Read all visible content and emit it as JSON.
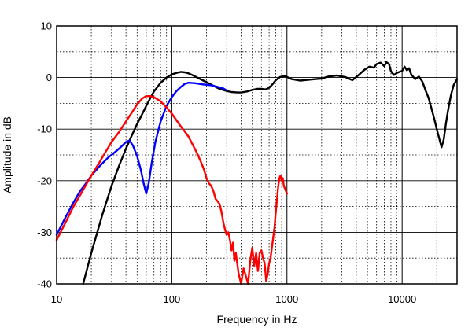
{
  "chart_data": {
    "type": "line",
    "xlabel": "Frequency  in Hz",
    "ylabel": "Amplitude in dB",
    "xscale": "log",
    "xlim": [
      10,
      30000
    ],
    "ylim": [
      -40,
      10
    ],
    "x_ticks": [
      "10",
      "100",
      "1000",
      "10000"
    ],
    "y_ticks": [
      "10",
      "0",
      "-10",
      "-20",
      "-30",
      "-40"
    ],
    "grid": true,
    "series": [
      {
        "color": "#000000",
        "points": [
          [
            17,
            -40
          ],
          [
            20,
            -34
          ],
          [
            25,
            -26.5
          ],
          [
            30,
            -21
          ],
          [
            35,
            -17
          ],
          [
            40,
            -13.8
          ],
          [
            45,
            -11.2
          ],
          [
            50,
            -9
          ],
          [
            55,
            -7.2
          ],
          [
            60,
            -5.5
          ],
          [
            65,
            -4
          ],
          [
            70,
            -2.7
          ],
          [
            80,
            -1
          ],
          [
            90,
            0
          ],
          [
            100,
            0.6
          ],
          [
            110,
            0.9
          ],
          [
            120,
            1.1
          ],
          [
            130,
            1.0
          ],
          [
            140,
            0.8
          ],
          [
            150,
            0.5
          ],
          [
            170,
            -0.1
          ],
          [
            200,
            -0.9
          ],
          [
            230,
            -1.6
          ],
          [
            260,
            -2.2
          ],
          [
            300,
            -2.6
          ],
          [
            330,
            -2.8
          ],
          [
            370,
            -2.9
          ],
          [
            400,
            -2.9
          ],
          [
            450,
            -2.7
          ],
          [
            500,
            -2.4
          ],
          [
            550,
            -2.2
          ],
          [
            600,
            -2.2
          ],
          [
            650,
            -2.3
          ],
          [
            700,
            -2.0
          ],
          [
            750,
            -1.3
          ],
          [
            800,
            -0.5
          ],
          [
            870,
            0.1
          ],
          [
            950,
            0.3
          ],
          [
            1000,
            0.1
          ],
          [
            1100,
            -0.3
          ],
          [
            1300,
            -0.6
          ],
          [
            1600,
            -0.4
          ],
          [
            2000,
            -0.2
          ],
          [
            2300,
            0.2
          ],
          [
            2700,
            0.4
          ],
          [
            3200,
            0.1
          ],
          [
            3700,
            -0.5
          ],
          [
            4200,
            0.5
          ],
          [
            4700,
            1.5
          ],
          [
            5200,
            2.1
          ],
          [
            5700,
            1.9
          ],
          [
            6000,
            2.6
          ],
          [
            6500,
            2.9
          ],
          [
            7000,
            2.2
          ],
          [
            7300,
            3.0
          ],
          [
            7700,
            2.6
          ],
          [
            8000,
            1.2
          ],
          [
            8500,
            0.5
          ],
          [
            9000,
            0.9
          ],
          [
            10000,
            1.3
          ],
          [
            10500,
            2.1
          ],
          [
            11000,
            1.4
          ],
          [
            11500,
            1.8
          ],
          [
            12000,
            0.6
          ],
          [
            13000,
            -0.3
          ],
          [
            14000,
            0.2
          ],
          [
            15000,
            -0.8
          ],
          [
            16000,
            -2.5
          ],
          [
            17000,
            -4.0
          ],
          [
            18000,
            -6.0
          ],
          [
            19000,
            -8.0
          ],
          [
            20000,
            -10.0
          ],
          [
            21000,
            -11.8
          ],
          [
            22000,
            -13.5
          ],
          [
            23000,
            -12.0
          ],
          [
            24000,
            -9.0
          ],
          [
            25000,
            -6.5
          ],
          [
            26500,
            -3.5
          ],
          [
            28000,
            -1.5
          ],
          [
            30000,
            -0.3
          ]
        ]
      },
      {
        "color": "#0000ff",
        "points": [
          [
            10,
            -30.5
          ],
          [
            12,
            -27
          ],
          [
            14,
            -24.2
          ],
          [
            16,
            -22
          ],
          [
            18,
            -20.5
          ],
          [
            20,
            -19
          ],
          [
            24,
            -17
          ],
          [
            28,
            -15.5
          ],
          [
            32,
            -14.5
          ],
          [
            36,
            -13.5
          ],
          [
            40,
            -12.5
          ],
          [
            43,
            -12.2
          ],
          [
            46,
            -13.2
          ],
          [
            50,
            -15.2
          ],
          [
            54,
            -18
          ],
          [
            57,
            -20.5
          ],
          [
            60,
            -22.5
          ],
          [
            63,
            -20.5
          ],
          [
            67,
            -16.5
          ],
          [
            72,
            -12.5
          ],
          [
            80,
            -8.5
          ],
          [
            90,
            -5.5
          ],
          [
            100,
            -3.8
          ],
          [
            110,
            -2.6
          ],
          [
            120,
            -1.8
          ],
          [
            130,
            -1.2
          ],
          [
            140,
            -1.0
          ],
          [
            160,
            -1.1
          ],
          [
            180,
            -1.3
          ],
          [
            200,
            -1.4
          ],
          [
            220,
            -1.5
          ],
          [
            250,
            -1.8
          ],
          [
            280,
            -2.1
          ],
          [
            300,
            -2.5
          ]
        ]
      },
      {
        "color": "#ff0000",
        "points": [
          [
            10,
            -31.5
          ],
          [
            12,
            -28
          ],
          [
            14,
            -25
          ],
          [
            16,
            -22.8
          ],
          [
            18,
            -20.8
          ],
          [
            20,
            -19
          ],
          [
            23,
            -16.8
          ],
          [
            26,
            -14.8
          ],
          [
            30,
            -12.5
          ],
          [
            35,
            -10.5
          ],
          [
            40,
            -8.5
          ],
          [
            45,
            -6.8
          ],
          [
            50,
            -5.2
          ],
          [
            55,
            -4.1
          ],
          [
            60,
            -3.6
          ],
          [
            65,
            -3.6
          ],
          [
            70,
            -3.8
          ],
          [
            80,
            -4.6
          ],
          [
            90,
            -5.8
          ],
          [
            100,
            -7.0
          ],
          [
            110,
            -8.3
          ],
          [
            120,
            -9.5
          ],
          [
            130,
            -10.5
          ],
          [
            140,
            -11.5
          ],
          [
            150,
            -12.8
          ],
          [
            160,
            -14.0
          ],
          [
            170,
            -15.2
          ],
          [
            180,
            -16.5
          ],
          [
            190,
            -17.8
          ],
          [
            200,
            -19.5
          ],
          [
            210,
            -20.5
          ],
          [
            220,
            -21.0
          ],
          [
            230,
            -22.0
          ],
          [
            240,
            -23.5
          ],
          [
            250,
            -24.0
          ],
          [
            260,
            -24.5
          ],
          [
            270,
            -26.0
          ],
          [
            280,
            -28.0
          ],
          [
            290,
            -29.5
          ],
          [
            300,
            -30.5
          ],
          [
            310,
            -30.0
          ],
          [
            320,
            -31.5
          ],
          [
            330,
            -33.5
          ],
          [
            340,
            -32.0
          ],
          [
            350,
            -35.5
          ],
          [
            360,
            -34.0
          ],
          [
            380,
            -38.0
          ],
          [
            400,
            -40
          ],
          [
            420,
            -37.0
          ],
          [
            440,
            -38.5
          ],
          [
            460,
            -40
          ],
          [
            480,
            -35.5
          ],
          [
            500,
            -33.0
          ],
          [
            520,
            -36.5
          ],
          [
            540,
            -34.0
          ],
          [
            560,
            -37.5
          ],
          [
            580,
            -34.0
          ],
          [
            600,
            -33.5
          ],
          [
            620,
            -35.0
          ],
          [
            640,
            -36.0
          ],
          [
            660,
            -39.5
          ],
          [
            680,
            -38.0
          ],
          [
            700,
            -36.0
          ],
          [
            720,
            -35.0
          ],
          [
            740,
            -33.0
          ],
          [
            760,
            -31.0
          ],
          [
            780,
            -29.0
          ],
          [
            800,
            -26.0
          ],
          [
            820,
            -23.5
          ],
          [
            840,
            -21.0
          ],
          [
            860,
            -19.5
          ],
          [
            880,
            -19.0
          ],
          [
            900,
            -20.0
          ],
          [
            920,
            -19.5
          ],
          [
            940,
            -21.0
          ],
          [
            960,
            -21.5
          ],
          [
            980,
            -22.0
          ],
          [
            1000,
            -22.5
          ]
        ]
      }
    ]
  }
}
